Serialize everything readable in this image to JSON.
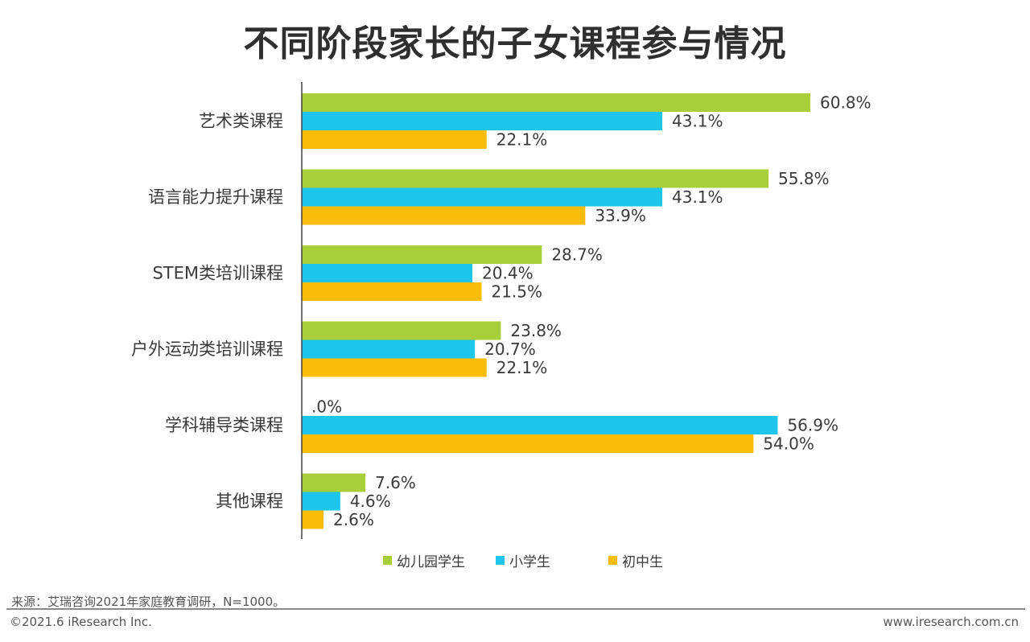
{
  "title": "不同阶段家长的子女课程参与情况",
  "chart_data": {
    "type": "bar",
    "orientation": "horizontal",
    "categories": [
      "艺术类课程",
      "语言能力提升课程",
      "STEM类培训课程",
      "户外运动类培训课程",
      "学科辅导类课程",
      "其他课程"
    ],
    "series": [
      {
        "name": "幼儿园学生",
        "color": "#a8cf3a",
        "values": [
          60.8,
          55.8,
          28.7,
          23.8,
          0.0,
          7.6
        ],
        "labels": [
          "60.8%",
          "55.8%",
          "28.7%",
          "23.8%",
          ".0%",
          "7.6%"
        ]
      },
      {
        "name": "小学生",
        "color": "#1ec6ee",
        "values": [
          43.1,
          43.1,
          20.4,
          20.7,
          56.9,
          4.6
        ],
        "labels": [
          "43.1%",
          "43.1%",
          "20.4%",
          "20.7%",
          "56.9%",
          "4.6%"
        ]
      },
      {
        "name": "初中生",
        "color": "#fbbd0a",
        "values": [
          22.1,
          33.9,
          21.5,
          22.1,
          54.0,
          2.6
        ],
        "labels": [
          "22.1%",
          "33.9%",
          "21.5%",
          "22.1%",
          "54.0%",
          "2.6%"
        ]
      }
    ],
    "xlim": [
      0,
      70
    ],
    "grid": false,
    "legend_position": "bottom"
  },
  "footer": {
    "source": "来源：艾瑞咨询2021年家庭教育调研，N=1000。",
    "copyright": "©2021.6 iResearch Inc.",
    "website": "www.iresearch.com.cn"
  }
}
